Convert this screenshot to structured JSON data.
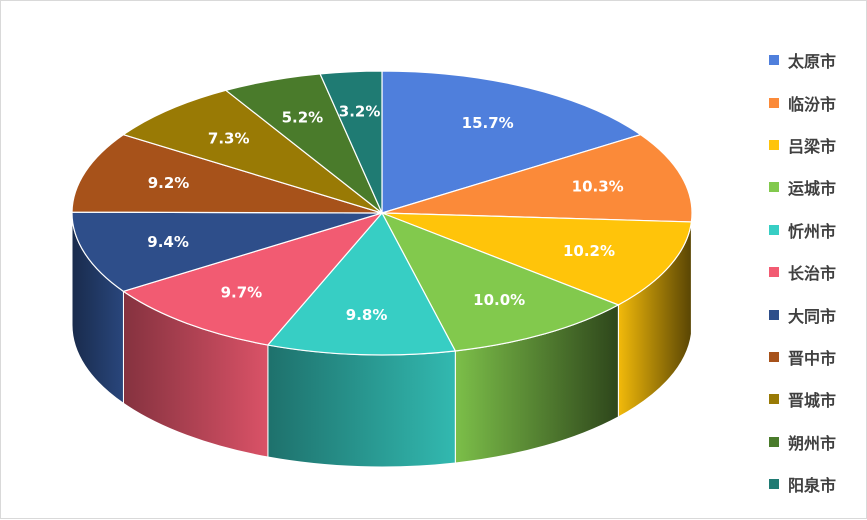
{
  "chart_data": {
    "type": "pie",
    "variant": "3d",
    "title": "",
    "legend_position": "right",
    "categories": [
      "太原市",
      "临汾市",
      "吕梁市",
      "运城市",
      "忻州市",
      "长治市",
      "大同市",
      "晋中市",
      "晋城市",
      "朔州市",
      "阳泉市"
    ],
    "values": [
      15.7,
      10.3,
      10.2,
      10.0,
      9.8,
      9.7,
      9.4,
      9.2,
      7.3,
      5.2,
      3.2
    ],
    "data_labels": [
      "15.7%",
      "10.3%",
      "10.2%",
      "10.0%",
      "9.8%",
      "9.7%",
      "9.4%",
      "9.2%",
      "7.3%",
      "5.2%",
      "3.2%"
    ],
    "unit": "%",
    "colors": [
      "#4f7fdc",
      "#fb8a39",
      "#ffc40a",
      "#82c94d",
      "#37cec4",
      "#f25b72",
      "#2e4e8a",
      "#a7521a",
      "#997a05",
      "#4a7b2b",
      "#1f7b73"
    ]
  }
}
